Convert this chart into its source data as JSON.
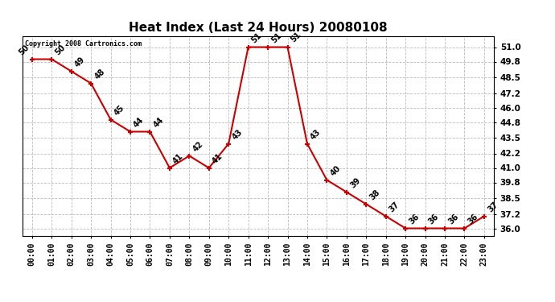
{
  "title": "Heat Index (Last 24 Hours) 20080108",
  "copyright": "Copyright 2008 Cartronics.com",
  "hours": [
    "00:00",
    "01:00",
    "02:00",
    "03:00",
    "04:00",
    "05:00",
    "06:00",
    "07:00",
    "08:00",
    "09:00",
    "10:00",
    "11:00",
    "12:00",
    "13:00",
    "14:00",
    "15:00",
    "16:00",
    "17:00",
    "18:00",
    "19:00",
    "20:00",
    "21:00",
    "22:00",
    "23:00"
  ],
  "values": [
    50,
    50,
    49,
    48,
    45,
    44,
    44,
    41,
    42,
    41,
    43,
    51,
    51,
    51,
    43,
    40,
    39,
    38,
    37,
    36,
    36,
    36,
    36,
    37
  ],
  "ylim_min": 35.4,
  "ylim_max": 51.9,
  "yticks": [
    36.0,
    37.2,
    38.5,
    39.8,
    41.0,
    42.2,
    43.5,
    44.8,
    46.0,
    47.2,
    48.5,
    49.8,
    51.0
  ],
  "line_color": "#cc0000",
  "marker_color": "#cc0000",
  "bg_color": "#ffffff",
  "grid_color": "#bbbbbb",
  "title_fontsize": 11,
  "label_fontsize": 7,
  "tick_fontsize": 7,
  "ytick_fontsize": 7.5
}
